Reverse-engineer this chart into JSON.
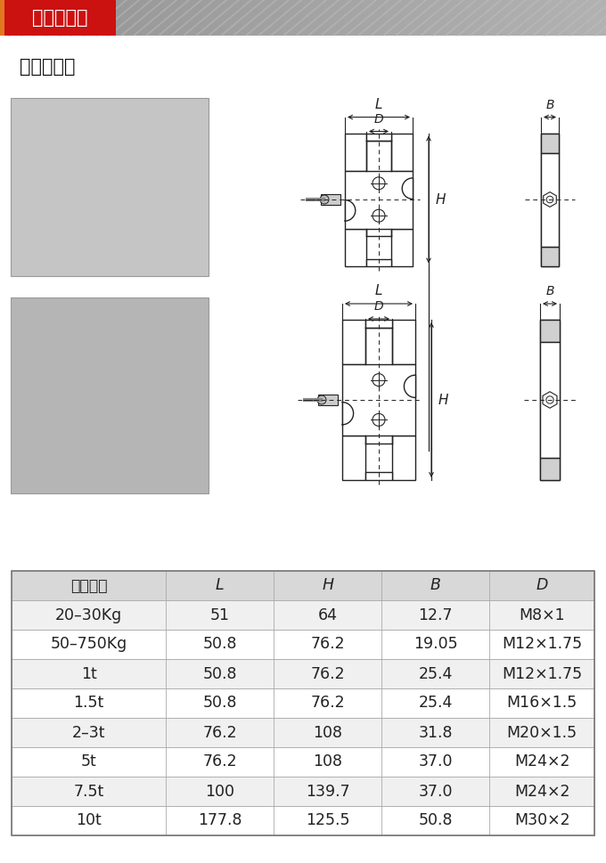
{
  "title_banner": "产品结构图",
  "title_banner_color": "#cc1111",
  "subtitle": "产品结构图",
  "table_header": [
    "标准量程",
    "L",
    "H",
    "B",
    "D"
  ],
  "table_rows": [
    [
      "20–30Kg",
      "51",
      "64",
      "12.7",
      "M8×1"
    ],
    [
      "50–750Kg",
      "50.8",
      "76.2",
      "19.05",
      "M12×1.75"
    ],
    [
      "1t",
      "50.8",
      "76.2",
      "25.4",
      "M12×1.75"
    ],
    [
      "1.5t",
      "50.8",
      "76.2",
      "25.4",
      "M16×1.5"
    ],
    [
      "2–3t",
      "76.2",
      "108",
      "31.8",
      "M20×1.5"
    ],
    [
      "5t",
      "76.2",
      "108",
      "37.0",
      "M24×2"
    ],
    [
      "7.5t",
      "100",
      "139.7",
      "37.0",
      "M24×2"
    ],
    [
      "10t",
      "177.8",
      "125.5",
      "50.8",
      "M30×2"
    ]
  ],
  "bg_color": "#ffffff",
  "table_border_color": "#aaaaaa",
  "header_bg": "#d8d8d8",
  "row_bg_odd": "#f0f0f0",
  "row_bg_even": "#ffffff",
  "banner_bg_left": "#cc1111",
  "banner_bg_right": "#9a9a9a",
  "accent_color": "#e07820",
  "draw_col": "#222222",
  "dim_col": "#222222"
}
